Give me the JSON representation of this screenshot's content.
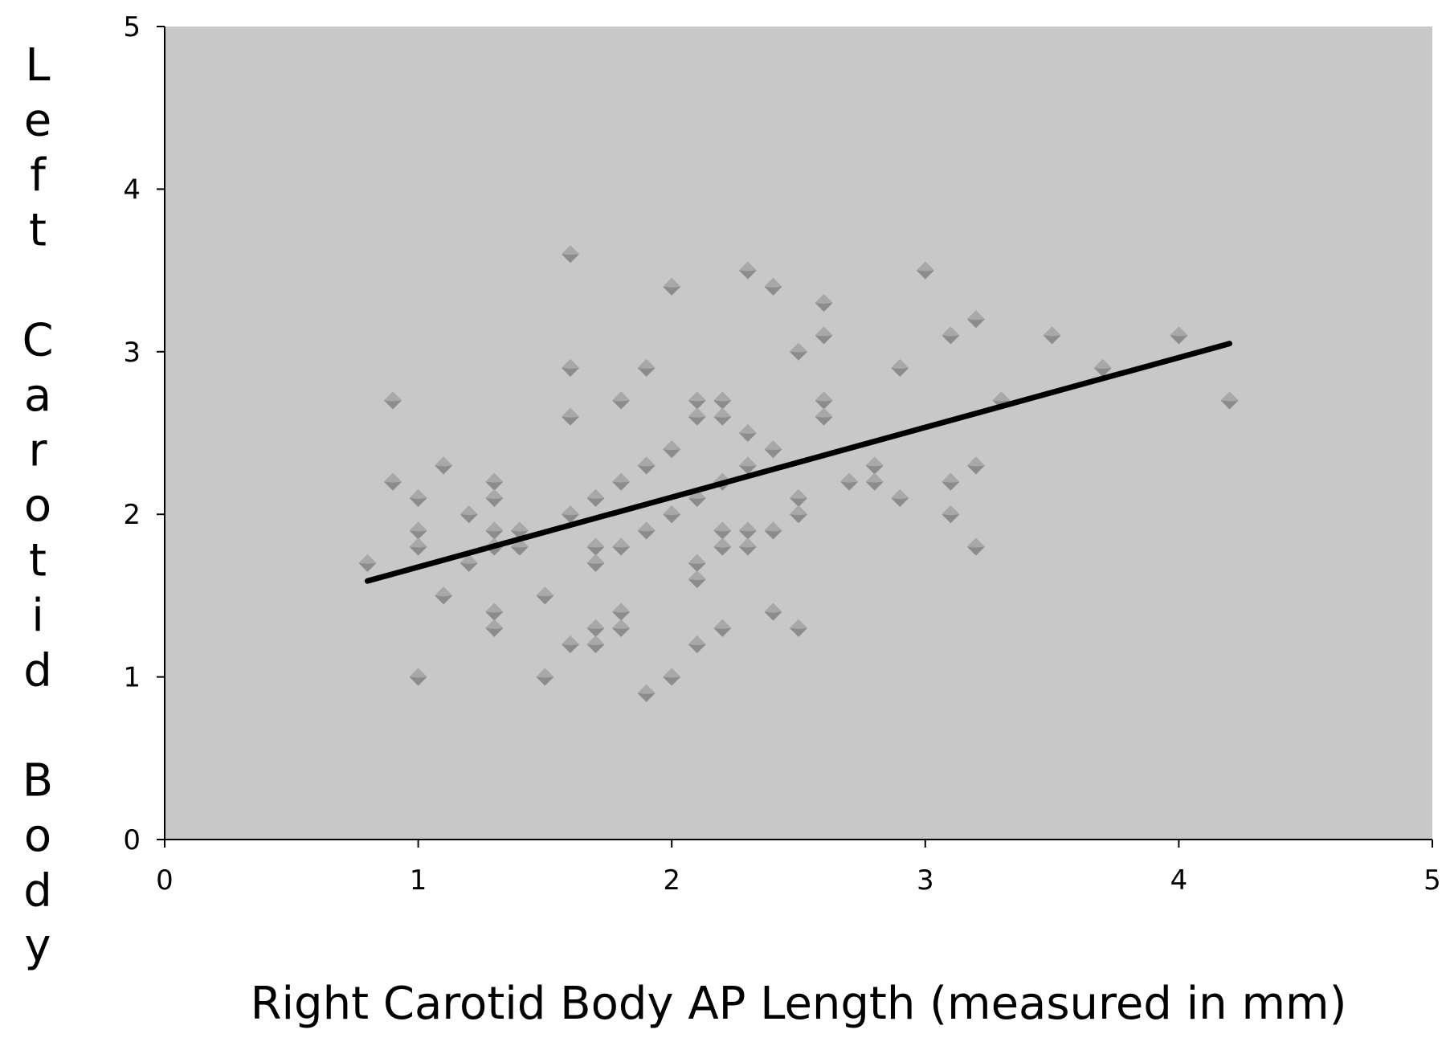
{
  "colors": {
    "plot_background": "#c8c8c8",
    "marker": "#8c8c8c",
    "marker_highlight": "#a8a8a8",
    "trendline": "#000000",
    "axis": "#000000"
  },
  "chart_data": {
    "type": "scatter",
    "title": "",
    "xlabel": "Right Carotid Body AP Length (measured in mm)",
    "ylabel": "Left Carotid Body",
    "xlim": [
      0,
      5
    ],
    "ylim": [
      0,
      5
    ],
    "x_ticks": [
      0,
      1,
      2,
      3,
      4,
      5
    ],
    "y_ticks": [
      0,
      1,
      2,
      3,
      4,
      5
    ],
    "x_tick_labels": [
      "0",
      "1",
      "2",
      "3",
      "4",
      "5"
    ],
    "y_tick_labels": [
      "0",
      "1",
      "2",
      "3",
      "4",
      "5"
    ],
    "grid": false,
    "legend": "none",
    "marker": "diamond",
    "points": [
      [
        0.8,
        1.7
      ],
      [
        0.9,
        2.7
      ],
      [
        0.9,
        2.2
      ],
      [
        1.0,
        2.1
      ],
      [
        1.0,
        1.9
      ],
      [
        1.0,
        1.8
      ],
      [
        1.0,
        1.0
      ],
      [
        1.1,
        2.3
      ],
      [
        1.1,
        1.5
      ],
      [
        1.2,
        2.0
      ],
      [
        1.2,
        1.7
      ],
      [
        1.3,
        2.2
      ],
      [
        1.3,
        2.1
      ],
      [
        1.3,
        1.9
      ],
      [
        1.3,
        1.8
      ],
      [
        1.3,
        1.4
      ],
      [
        1.3,
        1.3
      ],
      [
        1.4,
        1.9
      ],
      [
        1.4,
        1.8
      ],
      [
        1.5,
        1.5
      ],
      [
        1.5,
        1.0
      ],
      [
        1.6,
        3.6
      ],
      [
        1.6,
        2.9
      ],
      [
        1.6,
        2.6
      ],
      [
        1.6,
        2.0
      ],
      [
        1.6,
        1.2
      ],
      [
        1.7,
        2.1
      ],
      [
        1.7,
        1.8
      ],
      [
        1.7,
        1.7
      ],
      [
        1.7,
        1.3
      ],
      [
        1.7,
        1.2
      ],
      [
        1.8,
        2.7
      ],
      [
        1.8,
        2.2
      ],
      [
        1.8,
        1.8
      ],
      [
        1.8,
        1.4
      ],
      [
        1.8,
        1.3
      ],
      [
        1.9,
        2.9
      ],
      [
        1.9,
        2.3
      ],
      [
        1.9,
        1.9
      ],
      [
        1.9,
        0.9
      ],
      [
        2.0,
        3.4
      ],
      [
        2.0,
        2.4
      ],
      [
        2.0,
        2.0
      ],
      [
        2.0,
        1.0
      ],
      [
        2.1,
        2.7
      ],
      [
        2.1,
        2.6
      ],
      [
        2.1,
        2.1
      ],
      [
        2.1,
        1.7
      ],
      [
        2.1,
        1.6
      ],
      [
        2.1,
        1.2
      ],
      [
        2.2,
        2.7
      ],
      [
        2.2,
        2.6
      ],
      [
        2.2,
        2.2
      ],
      [
        2.2,
        1.9
      ],
      [
        2.2,
        1.8
      ],
      [
        2.2,
        1.3
      ],
      [
        2.3,
        3.5
      ],
      [
        2.3,
        2.5
      ],
      [
        2.3,
        2.3
      ],
      [
        2.3,
        1.9
      ],
      [
        2.3,
        1.8
      ],
      [
        2.4,
        3.4
      ],
      [
        2.4,
        2.4
      ],
      [
        2.4,
        1.9
      ],
      [
        2.4,
        1.4
      ],
      [
        2.5,
        3.0
      ],
      [
        2.5,
        2.1
      ],
      [
        2.5,
        2.0
      ],
      [
        2.5,
        1.3
      ],
      [
        2.6,
        3.3
      ],
      [
        2.6,
        3.1
      ],
      [
        2.6,
        2.7
      ],
      [
        2.6,
        2.6
      ],
      [
        2.7,
        2.2
      ],
      [
        2.8,
        2.3
      ],
      [
        2.8,
        2.2
      ],
      [
        2.9,
        2.9
      ],
      [
        2.9,
        2.1
      ],
      [
        3.0,
        3.5
      ],
      [
        3.1,
        3.1
      ],
      [
        3.1,
        2.2
      ],
      [
        3.1,
        2.0
      ],
      [
        3.2,
        3.2
      ],
      [
        3.2,
        2.3
      ],
      [
        3.2,
        1.8
      ],
      [
        3.3,
        2.7
      ],
      [
        3.5,
        3.1
      ],
      [
        3.7,
        2.9
      ],
      [
        4.0,
        3.1
      ],
      [
        4.2,
        2.7
      ]
    ],
    "trendline": {
      "type": "linear",
      "x": [
        0.8,
        4.2
      ],
      "y": [
        1.59,
        3.05
      ]
    }
  }
}
